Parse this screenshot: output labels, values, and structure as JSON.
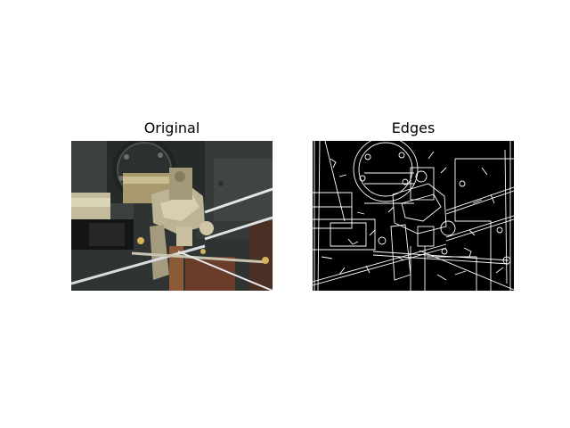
{
  "panels": [
    {
      "title": "Original"
    },
    {
      "title": "Edges"
    }
  ]
}
